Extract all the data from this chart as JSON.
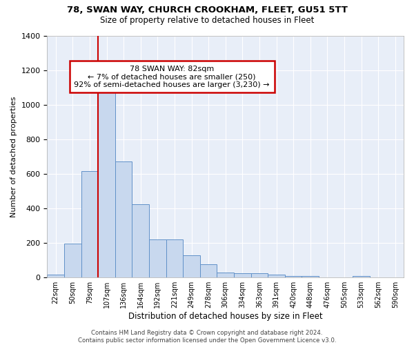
{
  "title1": "78, SWAN WAY, CHURCH CROOKHAM, FLEET, GU51 5TT",
  "title2": "Size of property relative to detached houses in Fleet",
  "xlabel": "Distribution of detached houses by size in Fleet",
  "ylabel": "Number of detached properties",
  "bar_color": "#c8d8ee",
  "bar_edge_color": "#6090c8",
  "bg_color": "#e8eef8",
  "grid_color": "#ffffff",
  "categories": [
    "22sqm",
    "50sqm",
    "79sqm",
    "107sqm",
    "136sqm",
    "164sqm",
    "192sqm",
    "221sqm",
    "249sqm",
    "278sqm",
    "306sqm",
    "334sqm",
    "363sqm",
    "391sqm",
    "420sqm",
    "448sqm",
    "476sqm",
    "505sqm",
    "533sqm",
    "562sqm",
    "590sqm"
  ],
  "values": [
    15,
    195,
    615,
    1120,
    670,
    425,
    220,
    220,
    130,
    75,
    30,
    25,
    25,
    15,
    10,
    10,
    0,
    0,
    10,
    0,
    0
  ],
  "ylim": [
    0,
    1400
  ],
  "yticks": [
    0,
    200,
    400,
    600,
    800,
    1000,
    1200,
    1400
  ],
  "property_line_x": 2.5,
  "annotation_text": "78 SWAN WAY: 82sqm\n← 7% of detached houses are smaller (250)\n92% of semi-detached houses are larger (3,230) →",
  "annotation_box_color": "#ffffff",
  "annotation_border_color": "#cc0000",
  "vline_color": "#cc0000",
  "footer": "Contains HM Land Registry data © Crown copyright and database right 2024.\nContains public sector information licensed under the Open Government Licence v3.0."
}
